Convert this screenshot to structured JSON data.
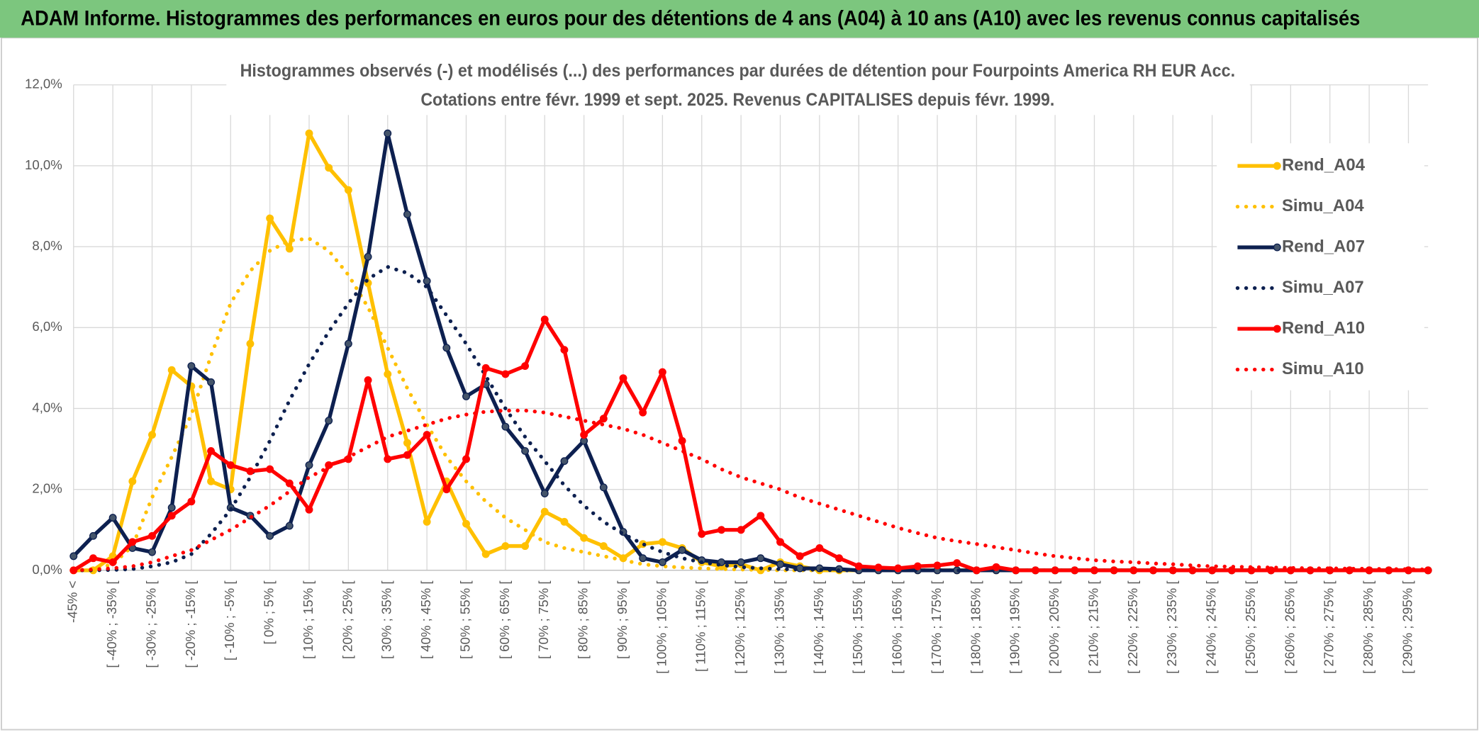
{
  "header": {
    "title": "ADAM Informe. Histogrammes des performances en euros pour des détentions de 4 ans (A04) à 10 ans (A10) avec les revenus connus capitalisés"
  },
  "chart_data": {
    "type": "line",
    "title": "Histogrammes observés (-) et modélisés (...) des performances par durées de détention pour Fourpoints America RH EUR Acc.",
    "subtitle": "Cotations entre févr. 1999 et sept. 2025. Revenus CAPITALISES depuis févr. 1999.",
    "categories": [
      "-45% <",
      null,
      "[ -40% ; -35% [",
      null,
      "[ -30% ; -25% [",
      null,
      "[ -20% ; -15% [",
      null,
      "[ -10% ; -5% [",
      null,
      "[ 0% ; 5% [",
      null,
      "[ 10% ; 15% [",
      null,
      "[ 20% ; 25% [",
      null,
      "[ 30% ; 35% [",
      null,
      "[ 40% ; 45% [",
      null,
      "[ 50% ; 55% [",
      null,
      "[ 60% ; 65% [",
      null,
      "[ 70% ; 75% [",
      null,
      "[ 80% ; 85% [",
      null,
      "[ 90% ; 95% [",
      null,
      "[ 100% ; 105% [",
      null,
      "[ 110% ; 115% [",
      null,
      "[ 120% ; 125% [",
      null,
      "[ 130% ; 135% [",
      null,
      "[ 140% ; 145% [",
      null,
      "[ 150% ; 155% [",
      null,
      "[ 160% ; 165% [",
      null,
      "[ 170% ; 175% [",
      null,
      "[ 180% ; 185% [",
      null,
      "[ 190% ; 195% [",
      null,
      "[ 200% ; 205% [",
      null,
      "[ 210% ; 215% [",
      null,
      "[ 220% ; 225% [",
      null,
      "[ 230% ; 235% [",
      null,
      "[ 240% ; 245% [",
      null,
      "[ 250% ; 255% [",
      null,
      "[ 260% ; 265% [",
      null,
      "[ 270% ; 275% [",
      null,
      "[ 280% ; 285% [",
      null,
      "[ 290% ; 295% [",
      null
    ],
    "series": [
      {
        "name": "Rend_A04",
        "color": "#ffc000",
        "style": "solid",
        "markers": true,
        "values": [
          0,
          0,
          0.35,
          2.2,
          3.35,
          4.95,
          4.55,
          2.2,
          2,
          5.6,
          8.7,
          7.95,
          10.8,
          9.95,
          9.4,
          7.1,
          4.85,
          3.15,
          1.2,
          2.2,
          1.15,
          0.4,
          0.6,
          0.6,
          1.45,
          1.2,
          0.8,
          0.6,
          0.3,
          0.65,
          0.7,
          0.55,
          0.2,
          0.1,
          0.15,
          0,
          0.2,
          0.1,
          0,
          0,
          0,
          0,
          0,
          0,
          0,
          0,
          0,
          0,
          0,
          0,
          0,
          0,
          0,
          0,
          0,
          0,
          0,
          0,
          0,
          0,
          0,
          0,
          0,
          0,
          0,
          0,
          0,
          0,
          0,
          0
        ]
      },
      {
        "name": "Simu_A04",
        "color": "#ffc000",
        "style": "dotted",
        "markers": false,
        "values": [
          0,
          0.03,
          0.15,
          0.6,
          1.8,
          2.8,
          3.85,
          5.3,
          6.6,
          7.4,
          7.9,
          8.15,
          8.2,
          7.9,
          7.3,
          6.5,
          5.5,
          4.5,
          3.6,
          2.8,
          2.2,
          1.7,
          1.3,
          1,
          0.7,
          0.55,
          0.45,
          0.35,
          0.25,
          0.15,
          0.1,
          0.07,
          0.05,
          0.03,
          0.02,
          0.01,
          0,
          0,
          0,
          0,
          0,
          0,
          0,
          0,
          0,
          0,
          0,
          0,
          0,
          0,
          0,
          0,
          0,
          0,
          0,
          0,
          0,
          0,
          0,
          0,
          0,
          0,
          0,
          0,
          0,
          0,
          0,
          0,
          0,
          0
        ]
      },
      {
        "name": "Rend_A07",
        "color": "#0d2050",
        "style": "solid",
        "markers": true,
        "values": [
          0.35,
          0.85,
          1.3,
          0.55,
          0.45,
          1.55,
          5.05,
          4.65,
          1.55,
          1.35,
          0.85,
          1.1,
          2.6,
          3.7,
          5.6,
          7.75,
          10.8,
          8.8,
          7.15,
          5.5,
          4.3,
          4.6,
          3.55,
          2.95,
          1.9,
          2.7,
          3.2,
          2.05,
          0.95,
          0.3,
          0.2,
          0.5,
          0.25,
          0.2,
          0.2,
          0.3,
          0.15,
          0.05,
          0.05,
          0.03,
          0,
          0,
          0,
          0,
          0,
          0,
          0,
          0,
          0,
          0,
          0,
          0,
          0,
          0,
          0,
          0,
          0,
          0,
          0,
          0,
          0,
          0,
          0,
          0,
          0,
          0,
          0,
          0,
          0,
          0
        ]
      },
      {
        "name": "Simu_A07",
        "color": "#0d2050",
        "style": "dotted",
        "markers": false,
        "values": [
          0,
          0,
          0.01,
          0.03,
          0.1,
          0.2,
          0.4,
          0.9,
          1.5,
          2.3,
          3.2,
          4.2,
          5.1,
          5.9,
          6.6,
          7.2,
          7.5,
          7.35,
          7,
          6.3,
          5.6,
          4.8,
          4,
          3.3,
          2.7,
          2.1,
          1.6,
          1.2,
          0.9,
          0.65,
          0.45,
          0.3,
          0.2,
          0.13,
          0.08,
          0.05,
          0.03,
          0.02,
          0.01,
          0,
          0,
          0,
          0,
          0,
          0,
          0,
          0,
          0,
          0,
          0,
          0,
          0,
          0,
          0,
          0,
          0,
          0,
          0,
          0,
          0,
          0,
          0,
          0,
          0,
          0,
          0,
          0,
          0,
          0,
          0
        ]
      },
      {
        "name": "Rend_A10",
        "color": "#ff0000",
        "style": "solid",
        "markers": true,
        "values": [
          0,
          0.3,
          0.2,
          0.7,
          0.85,
          1.35,
          1.7,
          2.95,
          2.6,
          2.45,
          2.5,
          2.15,
          1.5,
          2.6,
          2.75,
          4.7,
          2.75,
          2.85,
          3.35,
          2,
          2.75,
          5,
          4.85,
          5.05,
          6.2,
          5.45,
          3.35,
          3.75,
          4.75,
          3.9,
          4.9,
          3.2,
          0.9,
          1,
          1,
          1.35,
          0.7,
          0.35,
          0.55,
          0.3,
          0.1,
          0.07,
          0.05,
          0.1,
          0.12,
          0.18,
          0,
          0.08,
          0,
          0,
          0,
          0,
          0,
          0,
          0,
          0,
          0,
          0,
          0,
          0,
          0,
          0,
          0,
          0,
          0,
          0,
          0,
          0,
          0,
          0
        ]
      },
      {
        "name": "Simu_A10",
        "color": "#ff0000",
        "style": "dotted",
        "markers": false,
        "values": [
          0,
          0.02,
          0.05,
          0.1,
          0.2,
          0.35,
          0.5,
          0.75,
          1,
          1.3,
          1.6,
          1.95,
          2.3,
          2.55,
          2.8,
          3.05,
          3.3,
          3.45,
          3.6,
          3.75,
          3.85,
          3.92,
          3.95,
          3.95,
          3.9,
          3.8,
          3.7,
          3.6,
          3.5,
          3.35,
          3.15,
          2.95,
          2.75,
          2.5,
          2.3,
          2.15,
          2,
          1.8,
          1.65,
          1.5,
          1.35,
          1.2,
          1.05,
          0.92,
          0.8,
          0.72,
          0.65,
          0.57,
          0.5,
          0.42,
          0.35,
          0.3,
          0.25,
          0.22,
          0.2,
          0.17,
          0.15,
          0.12,
          0.1,
          0.09,
          0.08,
          0.07,
          0.06,
          0.05,
          0.05,
          0.04,
          0.04,
          0.03,
          0.03,
          0.02
        ]
      }
    ],
    "ylim": [
      0,
      12
    ],
    "yticks": [
      {
        "value": 0,
        "label": "0,0%"
      },
      {
        "value": 2,
        "label": "2,0%"
      },
      {
        "value": 4,
        "label": "4,0%"
      },
      {
        "value": 6,
        "label": "6,0%"
      },
      {
        "value": 8,
        "label": "8,0%"
      },
      {
        "value": 10,
        "label": "10,0%"
      },
      {
        "value": 12,
        "label": "12,0%"
      }
    ],
    "grid": true,
    "legend": "right"
  }
}
